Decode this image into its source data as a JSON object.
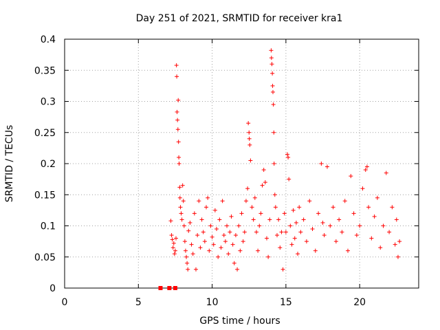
{
  "chart_data": {
    "type": "scatter",
    "title": "Day 251 of 2021, SRMTID for receiver kra1",
    "xlabel": "GPS time / hours",
    "ylabel": "SRMTID / TECUs",
    "xlim": [
      0,
      24
    ],
    "ylim": [
      0,
      0.4
    ],
    "xticks": [
      0,
      5,
      10,
      15,
      20
    ],
    "yticks": [
      0,
      0.05,
      0.1,
      0.15,
      0.2,
      0.25,
      0.3,
      0.35,
      0.4
    ],
    "xtick_labels": [
      "0",
      "5",
      "10",
      "15",
      "20"
    ],
    "ytick_labels": [
      "0",
      "0.05",
      "0.1",
      "0.15",
      "0.2",
      "0.25",
      "0.3",
      "0.35",
      "0.4"
    ],
    "grid": true,
    "marker": "+",
    "series": [
      {
        "name": "SRMTID",
        "color": "#ff0000",
        "points": [
          [
            6.5,
            0.0
          ],
          [
            7.1,
            0.0
          ],
          [
            7.5,
            0.0
          ],
          [
            7.2,
            0.108
          ],
          [
            7.25,
            0.085
          ],
          [
            7.3,
            0.078
          ],
          [
            7.35,
            0.065
          ],
          [
            7.4,
            0.072
          ],
          [
            7.45,
            0.055
          ],
          [
            7.5,
            0.06
          ],
          [
            7.55,
            0.08
          ],
          [
            7.58,
            0.358
          ],
          [
            7.6,
            0.34
          ],
          [
            7.62,
            0.283
          ],
          [
            7.65,
            0.27
          ],
          [
            7.68,
            0.255
          ],
          [
            7.7,
            0.302
          ],
          [
            7.72,
            0.235
          ],
          [
            7.74,
            0.21
          ],
          [
            7.76,
            0.2
          ],
          [
            7.8,
            0.162
          ],
          [
            7.82,
            0.145
          ],
          [
            7.85,
            0.13
          ],
          [
            7.9,
            0.12
          ],
          [
            7.95,
            0.11
          ],
          [
            8.0,
            0.165
          ],
          [
            8.05,
            0.14
          ],
          [
            8.1,
            0.1
          ],
          [
            8.15,
            0.075
          ],
          [
            8.2,
            0.06
          ],
          [
            8.25,
            0.05
          ],
          [
            8.3,
            0.04
          ],
          [
            8.35,
            0.03
          ],
          [
            8.4,
            0.092
          ],
          [
            8.5,
            0.105
          ],
          [
            8.6,
            0.07
          ],
          [
            8.7,
            0.055
          ],
          [
            8.8,
            0.12
          ],
          [
            8.9,
            0.03
          ],
          [
            9.0,
            0.085
          ],
          [
            9.1,
            0.14
          ],
          [
            9.2,
            0.065
          ],
          [
            9.3,
            0.11
          ],
          [
            9.4,
            0.09
          ],
          [
            9.5,
            0.075
          ],
          [
            9.6,
            0.13
          ],
          [
            9.7,
            0.145
          ],
          [
            9.8,
            0.06
          ],
          [
            9.9,
            0.1
          ],
          [
            10.0,
            0.082
          ],
          [
            10.1,
            0.07
          ],
          [
            10.2,
            0.125
          ],
          [
            10.3,
            0.095
          ],
          [
            10.4,
            0.05
          ],
          [
            10.5,
            0.11
          ],
          [
            10.6,
            0.065
          ],
          [
            10.7,
            0.14
          ],
          [
            10.8,
            0.085
          ],
          [
            10.9,
            0.075
          ],
          [
            11.0,
            0.1
          ],
          [
            11.1,
            0.055
          ],
          [
            11.2,
            0.09
          ],
          [
            11.3,
            0.115
          ],
          [
            11.4,
            0.07
          ],
          [
            11.5,
            0.04
          ],
          [
            11.6,
            0.085
          ],
          [
            11.7,
            0.03
          ],
          [
            11.8,
            0.1
          ],
          [
            11.9,
            0.06
          ],
          [
            12.0,
            0.12
          ],
          [
            12.1,
            0.075
          ],
          [
            12.2,
            0.09
          ],
          [
            12.3,
            0.14
          ],
          [
            12.4,
            0.16
          ],
          [
            12.45,
            0.265
          ],
          [
            12.5,
            0.25
          ],
          [
            12.52,
            0.24
          ],
          [
            12.55,
            0.23
          ],
          [
            12.6,
            0.205
          ],
          [
            12.7,
            0.13
          ],
          [
            12.8,
            0.11
          ],
          [
            12.9,
            0.145
          ],
          [
            13.0,
            0.09
          ],
          [
            13.1,
            0.06
          ],
          [
            13.2,
            0.1
          ],
          [
            13.3,
            0.12
          ],
          [
            13.4,
            0.165
          ],
          [
            13.5,
            0.19
          ],
          [
            13.6,
            0.17
          ],
          [
            13.7,
            0.08
          ],
          [
            13.8,
            0.05
          ],
          [
            13.9,
            0.11
          ],
          [
            14.0,
            0.382
          ],
          [
            14.02,
            0.37
          ],
          [
            14.05,
            0.36
          ],
          [
            14.08,
            0.345
          ],
          [
            14.1,
            0.325
          ],
          [
            14.12,
            0.315
          ],
          [
            14.15,
            0.295
          ],
          [
            14.18,
            0.25
          ],
          [
            14.2,
            0.2
          ],
          [
            14.25,
            0.15
          ],
          [
            14.3,
            0.13
          ],
          [
            14.4,
            0.085
          ],
          [
            14.5,
            0.11
          ],
          [
            14.6,
            0.065
          ],
          [
            14.7,
            0.09
          ],
          [
            14.8,
            0.03
          ],
          [
            14.9,
            0.12
          ],
          [
            15.0,
            0.09
          ],
          [
            15.1,
            0.215
          ],
          [
            15.15,
            0.21
          ],
          [
            15.2,
            0.175
          ],
          [
            15.3,
            0.1
          ],
          [
            15.4,
            0.07
          ],
          [
            15.5,
            0.125
          ],
          [
            15.6,
            0.08
          ],
          [
            15.7,
            0.105
          ],
          [
            15.8,
            0.055
          ],
          [
            15.9,
            0.13
          ],
          [
            16.0,
            0.09
          ],
          [
            16.2,
            0.11
          ],
          [
            16.4,
            0.075
          ],
          [
            16.6,
            0.14
          ],
          [
            16.8,
            0.095
          ],
          [
            17.0,
            0.06
          ],
          [
            17.2,
            0.12
          ],
          [
            17.4,
            0.2
          ],
          [
            17.5,
            0.105
          ],
          [
            17.6,
            0.085
          ],
          [
            17.8,
            0.195
          ],
          [
            18.0,
            0.1
          ],
          [
            18.2,
            0.13
          ],
          [
            18.4,
            0.075
          ],
          [
            18.6,
            0.11
          ],
          [
            18.8,
            0.09
          ],
          [
            19.0,
            0.14
          ],
          [
            19.2,
            0.06
          ],
          [
            19.4,
            0.18
          ],
          [
            19.6,
            0.12
          ],
          [
            19.8,
            0.085
          ],
          [
            20.0,
            0.1
          ],
          [
            20.2,
            0.16
          ],
          [
            20.4,
            0.19
          ],
          [
            20.5,
            0.195
          ],
          [
            20.6,
            0.13
          ],
          [
            20.8,
            0.08
          ],
          [
            21.0,
            0.115
          ],
          [
            21.2,
            0.145
          ],
          [
            21.4,
            0.065
          ],
          [
            21.6,
            0.1
          ],
          [
            21.8,
            0.185
          ],
          [
            22.0,
            0.09
          ],
          [
            22.2,
            0.13
          ],
          [
            22.4,
            0.07
          ],
          [
            22.5,
            0.11
          ],
          [
            22.6,
            0.05
          ],
          [
            22.7,
            0.075
          ]
        ]
      }
    ]
  }
}
